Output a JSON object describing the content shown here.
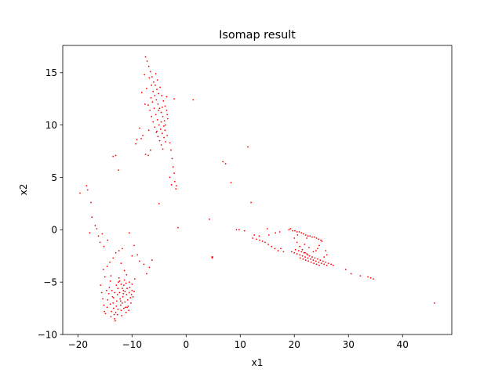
{
  "chart_data": {
    "type": "scatter",
    "title": "Isomap result",
    "xlabel": "x1",
    "ylabel": "x2",
    "xlim": [
      -22.8,
      49.1
    ],
    "ylim": [
      -10,
      17.6
    ],
    "xticks": [
      -20,
      -10,
      0,
      10,
      20,
      30,
      40
    ],
    "yticks": [
      -10,
      -5,
      0,
      5,
      10,
      15
    ],
    "grid": false,
    "legend": "none",
    "marker_color": "#ff0000",
    "series": [
      {
        "points": [
          [
            -19.6,
            3.5
          ],
          [
            -18.4,
            4.2
          ],
          [
            -18.2,
            3.8
          ],
          [
            -17.6,
            2.6
          ],
          [
            -17.4,
            1.2
          ],
          [
            -16.8,
            0.4
          ],
          [
            -16.5,
            0.1
          ],
          [
            -16.2,
            -0.6
          ],
          [
            -15.9,
            -1.2
          ],
          [
            -15.5,
            -0.4
          ],
          [
            -17.8,
            -0.3
          ],
          [
            -15.2,
            -1.6
          ],
          [
            -14.5,
            -1.0
          ],
          [
            -13.5,
            7.0
          ],
          [
            -13.0,
            7.1
          ],
          [
            -12.5,
            5.7
          ],
          [
            -10.5,
            -0.3
          ],
          [
            -9.6,
            -1.5
          ],
          [
            -9.0,
            -2.4
          ],
          [
            -8.6,
            -3.0
          ],
          [
            -7.8,
            -3.3
          ],
          [
            -7.3,
            -4.2
          ],
          [
            -6.8,
            -3.6
          ],
          [
            -6.3,
            -2.9
          ],
          [
            -10.0,
            -2.5
          ],
          [
            -15.3,
            -3.8
          ],
          [
            -15.0,
            -4.5
          ],
          [
            -14.6,
            -3.5
          ],
          [
            -14.1,
            -3.1
          ],
          [
            -13.5,
            -2.7
          ],
          [
            -13.0,
            -2.2
          ],
          [
            -12.4,
            -2.0
          ],
          [
            -11.8,
            -1.8
          ],
          [
            -12.0,
            -3.2
          ],
          [
            -11.4,
            -3.9
          ],
          [
            -11.0,
            -4.3
          ],
          [
            -10.5,
            -5.0
          ],
          [
            -10.0,
            -5.2
          ],
          [
            -9.5,
            -4.7
          ],
          [
            -15.8,
            -5.3
          ],
          [
            -15.6,
            -6.0
          ],
          [
            -15.4,
            -6.6
          ],
          [
            -15.2,
            -7.2
          ],
          [
            -15.1,
            -7.8
          ],
          [
            -14.9,
            -8.0
          ],
          [
            -14.6,
            -7.4
          ],
          [
            -14.5,
            -6.7
          ],
          [
            -14.3,
            -6.1
          ],
          [
            -14.2,
            -5.5
          ],
          [
            -14.0,
            -4.9
          ],
          [
            -13.9,
            -4.4
          ],
          [
            -13.7,
            -5.8
          ],
          [
            -13.6,
            -6.4
          ],
          [
            -13.5,
            -7.0
          ],
          [
            -13.4,
            -7.5
          ],
          [
            -13.3,
            -8.1
          ],
          [
            -13.2,
            -8.5
          ],
          [
            -13.1,
            -8.7
          ],
          [
            -13.0,
            -7.9
          ],
          [
            -12.9,
            -7.3
          ],
          [
            -12.8,
            -6.8
          ],
          [
            -12.7,
            -6.2
          ],
          [
            -12.6,
            -5.6
          ],
          [
            -12.5,
            -5.0
          ],
          [
            -12.4,
            -4.6
          ],
          [
            -12.3,
            -6.0
          ],
          [
            -12.2,
            -6.6
          ],
          [
            -12.1,
            -7.2
          ],
          [
            -12.0,
            -7.7
          ],
          [
            -11.9,
            -8.2
          ],
          [
            -11.8,
            -7.0
          ],
          [
            -11.7,
            -6.4
          ],
          [
            -11.6,
            -5.8
          ],
          [
            -11.5,
            -5.3
          ],
          [
            -11.4,
            -4.8
          ],
          [
            -11.3,
            -6.9
          ],
          [
            -11.2,
            -7.4
          ],
          [
            -11.1,
            -7.9
          ],
          [
            -11.0,
            -6.2
          ],
          [
            -10.9,
            -5.6
          ],
          [
            -10.8,
            -6.7
          ],
          [
            -10.7,
            -7.3
          ],
          [
            -10.6,
            -7.7
          ],
          [
            -10.5,
            -6.0
          ],
          [
            -10.4,
            -5.5
          ],
          [
            -10.3,
            -6.5
          ],
          [
            -10.2,
            -7.0
          ],
          [
            -10.1,
            -6.2
          ],
          [
            -10.0,
            -5.8
          ],
          [
            -9.8,
            -6.4
          ],
          [
            -9.6,
            -5.9
          ],
          [
            -12.0,
            -5.2
          ],
          [
            -11.8,
            -5.6
          ],
          [
            -11.6,
            -6.1
          ],
          [
            -12.6,
            -7.6
          ],
          [
            -13.8,
            -7.8
          ],
          [
            -13.4,
            -6.5
          ],
          [
            -12.9,
            -5.3
          ],
          [
            -12.3,
            -4.9
          ],
          [
            -11.1,
            -5.1
          ],
          [
            -10.9,
            -7.4
          ],
          [
            -14.7,
            -5.8
          ],
          [
            -13.9,
            -8.3
          ],
          [
            -12.7,
            -8.1
          ],
          [
            -11.5,
            -7.5
          ],
          [
            -11.3,
            -5.9
          ],
          [
            -12.1,
            -6.8
          ],
          [
            -13.2,
            -6.0
          ],
          [
            -14.0,
            -7.1
          ],
          [
            -7.5,
            16.5
          ],
          [
            -7.2,
            16.1
          ],
          [
            -6.9,
            15.6
          ],
          [
            -6.6,
            15.1
          ],
          [
            -6.3,
            14.6
          ],
          [
            -6.0,
            14.1
          ],
          [
            -5.7,
            13.8
          ],
          [
            -5.4,
            13.4
          ],
          [
            -5.1,
            13.0
          ],
          [
            -6.4,
            13.8
          ],
          [
            -6.1,
            13.2
          ],
          [
            -5.8,
            12.8
          ],
          [
            -5.5,
            12.4
          ],
          [
            -5.2,
            12.0
          ],
          [
            -4.9,
            11.6
          ],
          [
            -4.6,
            11.2
          ],
          [
            -4.3,
            10.8
          ],
          [
            -4.0,
            10.4
          ],
          [
            -3.8,
            10.0
          ],
          [
            -6.2,
            12.2
          ],
          [
            -5.9,
            11.6
          ],
          [
            -5.6,
            11.0
          ],
          [
            -5.3,
            10.5
          ],
          [
            -5.0,
            10.0
          ],
          [
            -4.7,
            9.6
          ],
          [
            -4.4,
            9.2
          ],
          [
            -4.1,
            8.8
          ],
          [
            -3.8,
            8.4
          ],
          [
            -7.0,
            11.9
          ],
          [
            -6.7,
            11.4
          ],
          [
            -6.4,
            10.8
          ],
          [
            -6.1,
            10.3
          ],
          [
            -5.8,
            9.8
          ],
          [
            -5.5,
            9.3
          ],
          [
            -5.2,
            8.9
          ],
          [
            -4.9,
            8.5
          ],
          [
            -4.6,
            8.1
          ],
          [
            -4.3,
            7.7
          ],
          [
            -7.7,
            14.8
          ],
          [
            -7.3,
            13.5
          ],
          [
            -6.8,
            14.5
          ],
          [
            -5.6,
            14.9
          ],
          [
            -5.3,
            14.3
          ],
          [
            -4.8,
            13.6
          ],
          [
            -4.5,
            12.8
          ],
          [
            -4.2,
            12.3
          ],
          [
            -3.9,
            11.8
          ],
          [
            -3.6,
            11.4
          ],
          [
            -3.4,
            10.6
          ],
          [
            -4.6,
            10.3
          ],
          [
            -5.1,
            11.4
          ],
          [
            -4.4,
            11.7
          ],
          [
            -3.9,
            9.5
          ],
          [
            -3.5,
            9.0
          ],
          [
            -6.9,
            9.5
          ],
          [
            -8.0,
            9.0
          ],
          [
            -8.6,
            9.7
          ],
          [
            -8.3,
            8.7
          ],
          [
            -9.3,
            8.2
          ],
          [
            -9.1,
            8.6
          ],
          [
            -7.5,
            7.2
          ],
          [
            -7.0,
            7.1
          ],
          [
            -6.6,
            7.6
          ],
          [
            -3.0,
            8.3
          ],
          [
            -2.8,
            7.6
          ],
          [
            -2.6,
            6.8
          ],
          [
            -2.4,
            6.0
          ],
          [
            -2.2,
            5.4
          ],
          [
            -2.1,
            4.6
          ],
          [
            -1.9,
            3.9
          ],
          [
            -1.8,
            4.2
          ],
          [
            -3.0,
            5.0
          ],
          [
            -2.7,
            4.3
          ],
          [
            -5.0,
            2.5
          ],
          [
            -1.5,
            0.2
          ],
          [
            -3.6,
            12.7
          ],
          [
            -3.5,
            11.0
          ],
          [
            -6.5,
            12.6
          ],
          [
            -7.6,
            12.0
          ],
          [
            -8.2,
            13.1
          ],
          [
            -2.2,
            12.5
          ],
          [
            1.3,
            12.4
          ],
          [
            -5.4,
            9.4
          ],
          [
            -4.1,
            9.9
          ],
          [
            4.3,
            1.0
          ],
          [
            4.8,
            -2.6
          ],
          [
            4.9,
            -2.6
          ],
          [
            4.8,
            -2.7
          ],
          [
            6.8,
            6.5
          ],
          [
            7.3,
            6.3
          ],
          [
            8.3,
            4.5
          ],
          [
            9.3,
            0.0
          ],
          [
            9.8,
            0.0
          ],
          [
            10.8,
            -0.1
          ],
          [
            11.4,
            7.9
          ],
          [
            12.0,
            2.6
          ],
          [
            12.6,
            -0.5
          ],
          [
            13.5,
            -0.6
          ],
          [
            12.3,
            -0.8
          ],
          [
            13.0,
            -0.9
          ],
          [
            13.6,
            -1.0
          ],
          [
            14.1,
            -1.1
          ],
          [
            14.6,
            -1.2
          ],
          [
            15.2,
            -1.4
          ],
          [
            15.8,
            -1.6
          ],
          [
            16.4,
            -1.8
          ],
          [
            17.0,
            -2.0
          ],
          [
            17.5,
            -1.8
          ],
          [
            18.0,
            -2.1
          ],
          [
            15.3,
            -0.5
          ],
          [
            16.5,
            -0.3
          ],
          [
            17.3,
            -0.2
          ],
          [
            15.0,
            0.1
          ],
          [
            19.3,
            0.1
          ],
          [
            19.7,
            -0.1
          ],
          [
            20.1,
            -0.1
          ],
          [
            20.5,
            -0.2
          ],
          [
            20.9,
            -0.2
          ],
          [
            21.3,
            -0.3
          ],
          [
            21.7,
            -0.4
          ],
          [
            22.1,
            -0.5
          ],
          [
            22.5,
            -0.6
          ],
          [
            22.9,
            -0.6
          ],
          [
            23.3,
            -0.7
          ],
          [
            23.7,
            -0.7
          ],
          [
            24.1,
            -0.8
          ],
          [
            24.5,
            -0.9
          ],
          [
            24.9,
            -1.0
          ],
          [
            25.1,
            -1.1
          ],
          [
            24.6,
            -1.5
          ],
          [
            24.3,
            -1.8
          ],
          [
            24.0,
            -2.0
          ],
          [
            25.5,
            -2.6
          ],
          [
            20.0,
            -0.8
          ],
          [
            20.5,
            -1.2
          ],
          [
            21.0,
            -1.6
          ],
          [
            21.5,
            -1.9
          ],
          [
            22.0,
            -2.2
          ],
          [
            22.5,
            -2.4
          ],
          [
            19.5,
            -2.1
          ],
          [
            20.0,
            -2.2
          ],
          [
            20.5,
            -2.3
          ],
          [
            21.0,
            -2.4
          ],
          [
            21.5,
            -2.5
          ],
          [
            22.0,
            -2.6
          ],
          [
            22.5,
            -2.7
          ],
          [
            23.0,
            -2.8
          ],
          [
            23.5,
            -2.9
          ],
          [
            24.0,
            -3.0
          ],
          [
            24.5,
            -3.1
          ],
          [
            25.0,
            -3.2
          ],
          [
            25.5,
            -3.3
          ],
          [
            26.0,
            -3.4
          ],
          [
            20.2,
            -1.9
          ],
          [
            20.8,
            -2.0
          ],
          [
            21.3,
            -2.1
          ],
          [
            21.8,
            -2.2
          ],
          [
            22.3,
            -2.3
          ],
          [
            22.8,
            -2.5
          ],
          [
            23.3,
            -2.6
          ],
          [
            23.8,
            -2.7
          ],
          [
            24.3,
            -2.8
          ],
          [
            24.8,
            -2.9
          ],
          [
            25.3,
            -3.0
          ],
          [
            25.8,
            -3.1
          ],
          [
            26.3,
            -3.2
          ],
          [
            26.8,
            -3.3
          ],
          [
            21.1,
            -2.7
          ],
          [
            21.6,
            -2.8
          ],
          [
            22.1,
            -2.9
          ],
          [
            22.6,
            -3.0
          ],
          [
            23.1,
            -3.1
          ],
          [
            23.6,
            -3.2
          ],
          [
            24.1,
            -3.3
          ],
          [
            24.6,
            -3.4
          ],
          [
            21.9,
            -1.4
          ],
          [
            22.7,
            -1.7
          ],
          [
            23.5,
            -2.1
          ],
          [
            20.6,
            -0.5
          ],
          [
            19.0,
            0.0
          ],
          [
            22.3,
            -0.8
          ],
          [
            25.8,
            -2.0
          ],
          [
            26.0,
            -2.4
          ],
          [
            27.2,
            -3.4
          ],
          [
            29.5,
            -3.8
          ],
          [
            30.5,
            -4.2
          ],
          [
            32.2,
            -4.4
          ],
          [
            33.6,
            -4.5
          ],
          [
            34.1,
            -4.6
          ],
          [
            34.6,
            -4.7
          ],
          [
            45.9,
            -7.0
          ]
        ]
      }
    ]
  }
}
